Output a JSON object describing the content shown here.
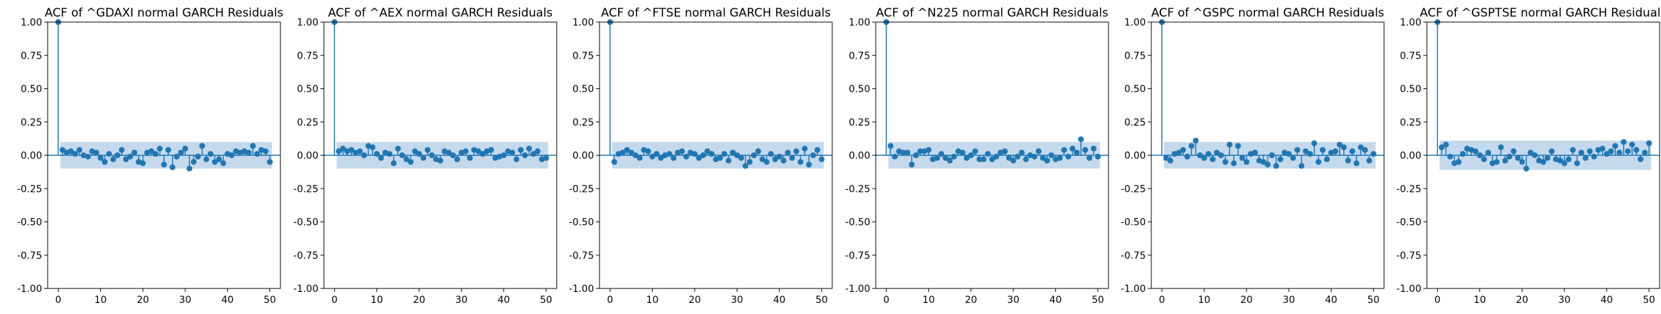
{
  "figure": {
    "background": "#ffffff"
  },
  "style": {
    "stem_color": "#1f77b4",
    "band_color": "#c5d9ec",
    "zero_line_color": "#1f77b4",
    "axis_color": "#000000"
  },
  "chart_data": [
    {
      "type": "stem",
      "title": "ACF of ^GDAXI normal GARCH Residuals",
      "xlabel": "",
      "ylabel": "",
      "xlim": [
        -2.5,
        52.5
      ],
      "ylim": [
        -1.0,
        1.0
      ],
      "xticks": [
        "0",
        "10",
        "20",
        "30",
        "40",
        "50"
      ],
      "yticks": [
        "-1.00",
        "-0.75",
        "-0.50",
        "-0.25",
        "0.00",
        "0.25",
        "0.50",
        "0.75",
        "1.00"
      ],
      "confidence_band": 0.1,
      "lags": [
        0,
        1,
        2,
        3,
        4,
        5,
        6,
        7,
        8,
        9,
        10,
        11,
        12,
        13,
        14,
        15,
        16,
        17,
        18,
        19,
        20,
        21,
        22,
        23,
        24,
        25,
        26,
        27,
        28,
        29,
        30,
        31,
        32,
        33,
        34,
        35,
        36,
        37,
        38,
        39,
        40,
        41,
        42,
        43,
        44,
        45,
        46,
        47,
        48,
        49,
        50
      ],
      "values": [
        1.0,
        0.04,
        0.02,
        0.03,
        0.01,
        0.04,
        0.0,
        -0.01,
        0.03,
        0.02,
        -0.02,
        -0.05,
        0.01,
        -0.03,
        0.0,
        0.04,
        -0.03,
        -0.01,
        0.02,
        -0.05,
        -0.06,
        0.02,
        0.03,
        0.01,
        0.05,
        -0.07,
        0.04,
        -0.09,
        -0.01,
        0.02,
        0.05,
        -0.1,
        -0.05,
        -0.01,
        0.07,
        -0.03,
        0.01,
        -0.05,
        -0.03,
        -0.06,
        0.01,
        0.0,
        0.03,
        0.02,
        0.03,
        0.02,
        0.07,
        0.01,
        0.04,
        0.03,
        -0.05
      ]
    },
    {
      "type": "stem",
      "title": "ACF of ^AEX normal GARCH Residuals",
      "xlabel": "",
      "ylabel": "",
      "xlim": [
        -2.5,
        52.5
      ],
      "ylim": [
        -1.0,
        1.0
      ],
      "xticks": [
        "0",
        "10",
        "20",
        "30",
        "40",
        "50"
      ],
      "yticks": [
        "-1.00",
        "-0.75",
        "-0.50",
        "-0.25",
        "0.00",
        "0.25",
        "0.50",
        "0.75",
        "1.00"
      ],
      "confidence_band": 0.1,
      "lags": [
        0,
        1,
        2,
        3,
        4,
        5,
        6,
        7,
        8,
        9,
        10,
        11,
        12,
        13,
        14,
        15,
        16,
        17,
        18,
        19,
        20,
        21,
        22,
        23,
        24,
        25,
        26,
        27,
        28,
        29,
        30,
        31,
        32,
        33,
        34,
        35,
        36,
        37,
        38,
        39,
        40,
        41,
        42,
        43,
        44,
        45,
        46,
        47,
        48,
        49,
        50
      ],
      "values": [
        1.0,
        0.03,
        0.05,
        0.03,
        0.04,
        0.02,
        0.03,
        0.0,
        0.07,
        0.06,
        0.01,
        -0.02,
        0.02,
        0.01,
        -0.06,
        0.05,
        0.0,
        -0.03,
        -0.05,
        0.03,
        0.01,
        -0.02,
        0.04,
        0.0,
        -0.03,
        -0.04,
        0.03,
        0.02,
        0.0,
        -0.03,
        0.02,
        0.03,
        -0.02,
        0.04,
        0.03,
        0.01,
        0.03,
        0.04,
        -0.02,
        -0.01,
        0.0,
        0.03,
        0.02,
        -0.03,
        0.04,
        0.0,
        0.05,
        0.01,
        0.03,
        -0.03,
        -0.02
      ]
    },
    {
      "type": "stem",
      "title": "ACF of ^FTSE normal GARCH Residuals",
      "xlabel": "",
      "ylabel": "",
      "xlim": [
        -2.5,
        52.5
      ],
      "ylim": [
        -1.0,
        1.0
      ],
      "xticks": [
        "0",
        "10",
        "20",
        "30",
        "40",
        "50"
      ],
      "yticks": [
        "-1.00",
        "-0.75",
        "-0.50",
        "-0.25",
        "0.00",
        "0.25",
        "0.50",
        "0.75",
        "1.00"
      ],
      "confidence_band": 0.1,
      "lags": [
        0,
        1,
        2,
        3,
        4,
        5,
        6,
        7,
        8,
        9,
        10,
        11,
        12,
        13,
        14,
        15,
        16,
        17,
        18,
        19,
        20,
        21,
        22,
        23,
        24,
        25,
        26,
        27,
        28,
        29,
        30,
        31,
        32,
        33,
        34,
        35,
        36,
        37,
        38,
        39,
        40,
        41,
        42,
        43,
        44,
        45,
        46,
        47,
        48,
        49,
        50
      ],
      "values": [
        1.0,
        -0.05,
        0.01,
        0.02,
        0.04,
        0.02,
        0.0,
        -0.02,
        0.04,
        0.03,
        -0.01,
        0.01,
        -0.02,
        0.0,
        0.01,
        -0.02,
        0.02,
        0.03,
        -0.01,
        0.02,
        0.01,
        -0.02,
        0.0,
        0.03,
        0.01,
        -0.03,
        -0.02,
        0.01,
        -0.04,
        0.02,
        0.0,
        -0.02,
        -0.08,
        -0.05,
        0.0,
        0.03,
        -0.03,
        -0.05,
        0.01,
        -0.03,
        -0.01,
        -0.04,
        0.02,
        -0.02,
        0.03,
        -0.05,
        0.05,
        -0.07,
        0.0,
        0.04,
        -0.03
      ]
    },
    {
      "type": "stem",
      "title": "ACF of ^N225 normal GARCH Residuals",
      "xlabel": "",
      "ylabel": "",
      "xlim": [
        -2.5,
        52.5
      ],
      "ylim": [
        -1.0,
        1.0
      ],
      "xticks": [
        "0",
        "10",
        "20",
        "30",
        "40",
        "50"
      ],
      "yticks": [
        "-1.00",
        "-0.75",
        "-0.50",
        "-0.25",
        "0.00",
        "0.25",
        "0.50",
        "0.75",
        "1.00"
      ],
      "confidence_band": 0.1,
      "lags": [
        0,
        1,
        2,
        3,
        4,
        5,
        6,
        7,
        8,
        9,
        10,
        11,
        12,
        13,
        14,
        15,
        16,
        17,
        18,
        19,
        20,
        21,
        22,
        23,
        24,
        25,
        26,
        27,
        28,
        29,
        30,
        31,
        32,
        33,
        34,
        35,
        36,
        37,
        38,
        39,
        40,
        41,
        42,
        43,
        44,
        45,
        46,
        47,
        48,
        49,
        50
      ],
      "values": [
        1.0,
        0.07,
        -0.01,
        0.03,
        0.02,
        0.02,
        -0.07,
        0.0,
        0.03,
        0.03,
        0.04,
        -0.03,
        -0.02,
        0.01,
        -0.02,
        -0.04,
        -0.01,
        0.03,
        0.02,
        -0.02,
        0.0,
        0.03,
        -0.03,
        -0.03,
        0.01,
        -0.03,
        -0.01,
        0.02,
        0.03,
        -0.02,
        -0.04,
        -0.01,
        0.02,
        -0.03,
        0.0,
        -0.01,
        0.03,
        -0.02,
        -0.04,
        0.0,
        -0.03,
        -0.02,
        0.04,
        -0.01,
        0.05,
        0.02,
        0.12,
        0.04,
        -0.02,
        0.05,
        -0.01
      ]
    },
    {
      "type": "stem",
      "title": "ACF of ^GSPC normal GARCH Residuals",
      "xlabel": "",
      "ylabel": "",
      "xlim": [
        -2.5,
        52.5
      ],
      "ylim": [
        -1.0,
        1.0
      ],
      "xticks": [
        "0",
        "10",
        "20",
        "30",
        "40",
        "50"
      ],
      "yticks": [
        "-1.00",
        "-0.75",
        "-0.50",
        "-0.25",
        "0.00",
        "0.25",
        "0.50",
        "0.75",
        "1.00"
      ],
      "confidence_band": 0.1,
      "lags": [
        0,
        1,
        2,
        3,
        4,
        5,
        6,
        7,
        8,
        9,
        10,
        11,
        12,
        13,
        14,
        15,
        16,
        17,
        18,
        19,
        20,
        21,
        22,
        23,
        24,
        25,
        26,
        27,
        28,
        29,
        30,
        31,
        32,
        33,
        34,
        35,
        36,
        37,
        38,
        39,
        40,
        41,
        42,
        43,
        44,
        45,
        46,
        47,
        48,
        49,
        50
      ],
      "values": [
        1.0,
        -0.02,
        -0.04,
        0.01,
        0.02,
        0.04,
        -0.01,
        0.07,
        0.11,
        0.0,
        -0.02,
        0.01,
        -0.03,
        0.02,
        0.0,
        -0.05,
        0.08,
        -0.06,
        0.07,
        -0.02,
        -0.05,
        0.01,
        0.02,
        -0.04,
        -0.05,
        -0.07,
        0.0,
        -0.08,
        -0.03,
        0.02,
        0.01,
        -0.02,
        0.04,
        -0.08,
        0.03,
        0.01,
        0.09,
        -0.05,
        0.04,
        -0.03,
        0.02,
        0.03,
        0.08,
        0.06,
        -0.04,
        0.03,
        -0.06,
        0.06,
        0.04,
        -0.04,
        0.01
      ]
    },
    {
      "type": "stem",
      "title": "ACF of ^GSPTSE normal GARCH Residuals",
      "xlabel": "",
      "ylabel": "",
      "xlim": [
        -2.5,
        52.5
      ],
      "ylim": [
        -1.0,
        1.0
      ],
      "xticks": [
        "0",
        "10",
        "20",
        "30",
        "40",
        "50"
      ],
      "yticks": [
        "-1.00",
        "-0.75",
        "-0.50",
        "-0.25",
        "0.00",
        "0.25",
        "0.50",
        "0.75",
        "1.00"
      ],
      "confidence_band": 0.11,
      "lags": [
        0,
        1,
        2,
        3,
        4,
        5,
        6,
        7,
        8,
        9,
        10,
        11,
        12,
        13,
        14,
        15,
        16,
        17,
        18,
        19,
        20,
        21,
        22,
        23,
        24,
        25,
        26,
        27,
        28,
        29,
        30,
        31,
        32,
        33,
        34,
        35,
        36,
        37,
        38,
        39,
        40,
        41,
        42,
        43,
        44,
        45,
        46,
        47,
        48,
        49,
        50
      ],
      "values": [
        1.0,
        0.06,
        0.08,
        -0.01,
        -0.06,
        -0.05,
        0.01,
        0.05,
        0.04,
        0.03,
        0.0,
        -0.03,
        0.02,
        -0.06,
        -0.05,
        0.06,
        -0.04,
        -0.01,
        0.03,
        -0.02,
        -0.05,
        -0.1,
        0.02,
        0.0,
        -0.04,
        -0.05,
        -0.02,
        0.03,
        -0.03,
        -0.04,
        -0.06,
        -0.03,
        0.04,
        -0.06,
        0.02,
        -0.02,
        0.03,
        -0.01,
        0.04,
        0.05,
        0.01,
        0.03,
        0.07,
        0.02,
        0.1,
        0.03,
        0.08,
        0.04,
        -0.03,
        0.02,
        0.09
      ]
    }
  ]
}
